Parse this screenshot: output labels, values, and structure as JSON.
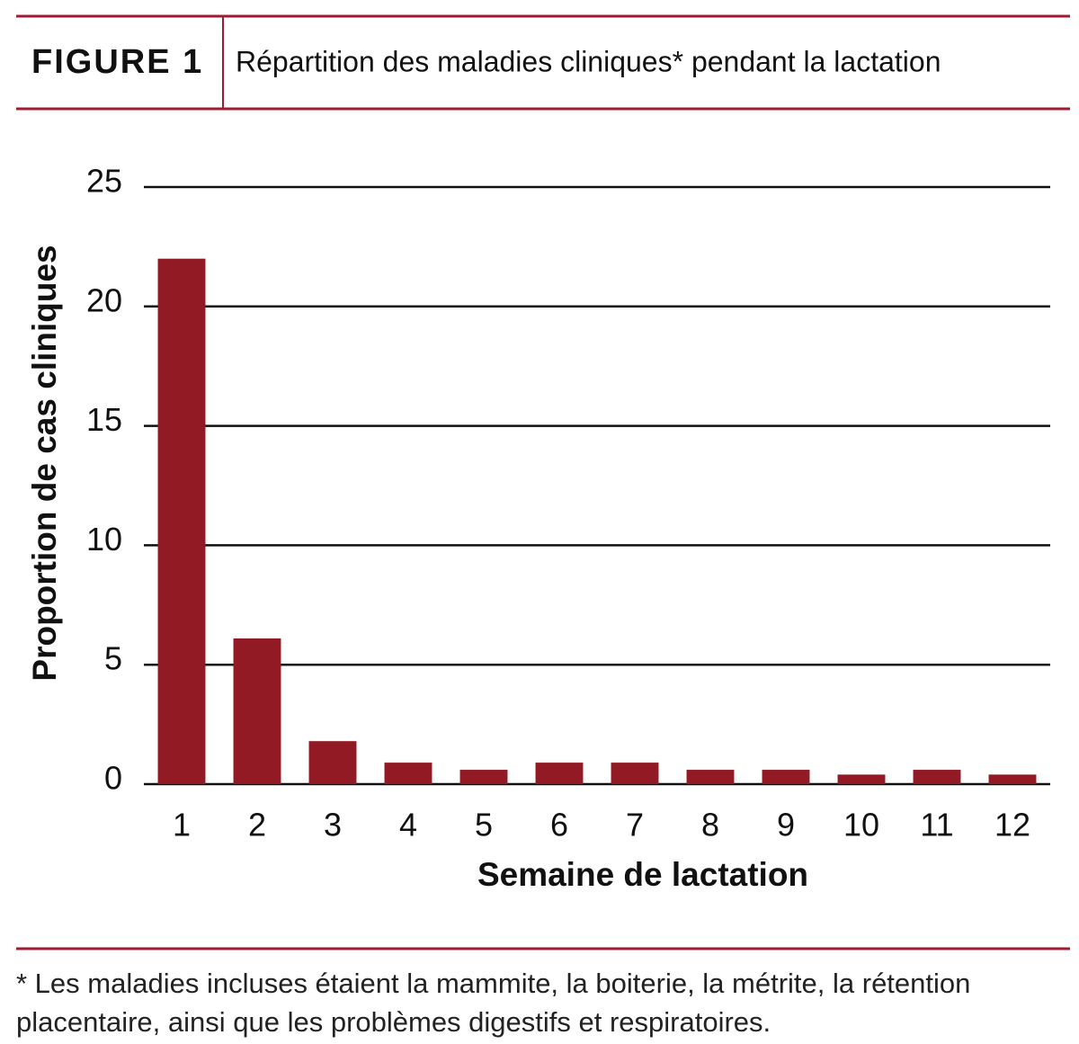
{
  "header": {
    "label": "FIGURE 1",
    "title": "Répartition des maladies cliniques* pendant la lactation"
  },
  "chart_data": {
    "type": "bar",
    "x_label": "Semaine de lactation",
    "y_label": "Proportion de cas cliniques",
    "categories": [
      "1",
      "2",
      "3",
      "4",
      "5",
      "6",
      "7",
      "8",
      "9",
      "10",
      "11",
      "12"
    ],
    "values": [
      22,
      6.1,
      1.8,
      0.9,
      0.6,
      0.9,
      0.9,
      0.6,
      0.6,
      0.4,
      0.6,
      0.4
    ],
    "color": "#921a24",
    "ylim": [
      0,
      25
    ],
    "yticks": [
      0,
      5,
      10,
      15,
      20,
      25
    ],
    "grid": true
  },
  "footnote": "* Les maladies incluses étaient la mammite, la boiterie, la métrite, la rétention placentaire, ainsi que les problèmes digestifs et respiratoires."
}
